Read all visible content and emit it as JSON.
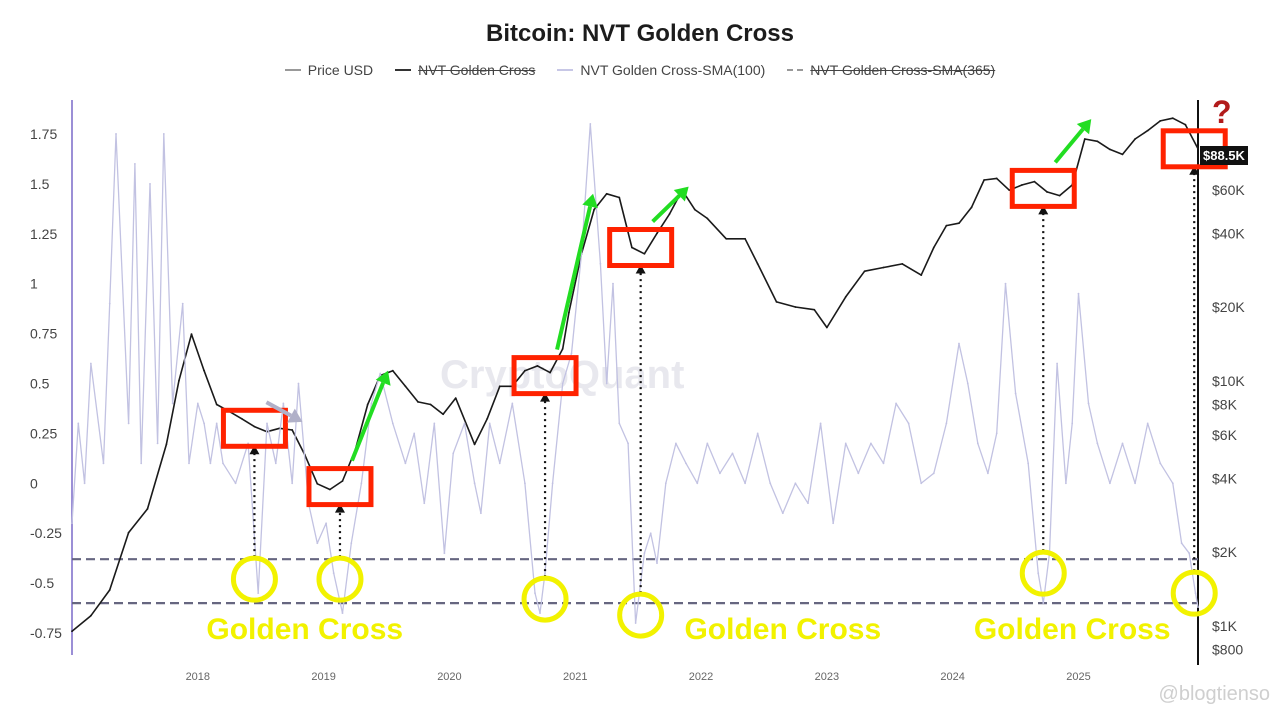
{
  "chart_data": {
    "type": "line",
    "title": "Bitcoin: NVT Golden Cross",
    "legend": [
      {
        "label": "Price USD",
        "color": "#999999",
        "style": "solid",
        "struck": false
      },
      {
        "label": "NVT Golden Cross",
        "color": "#333333",
        "style": "solid",
        "struck": true
      },
      {
        "label": "NVT Golden Cross-SMA(100)",
        "color": "#c7c7e6",
        "style": "solid",
        "struck": false
      },
      {
        "label": "NVT Golden Cross-SMA(365)",
        "color": "#999999",
        "style": "dashed",
        "struck": true
      }
    ],
    "legend_position": "top-center",
    "x_ticks": [
      "2018",
      "2019",
      "2020",
      "2021",
      "2022",
      "2023",
      "2024",
      "2025"
    ],
    "x_range": [
      2017.0,
      2025.95
    ],
    "y_left": {
      "ticks": [
        1.75,
        1.5,
        1.25,
        1,
        0.75,
        0.5,
        0.25,
        0,
        -0.25,
        -0.5,
        -0.75
      ],
      "tick_labels": [
        "1.75",
        "1.5",
        "1.25",
        "1",
        "0.75",
        "0.5",
        "0.25",
        "0",
        "-0.25",
        "-0.5",
        "-0.75"
      ],
      "range": [
        -0.86,
        1.92
      ]
    },
    "y_right": {
      "scale": "log",
      "ticks": [
        60000,
        40000,
        20000,
        10000,
        8000,
        6000,
        4000,
        2000,
        1000,
        800
      ],
      "tick_labels": [
        "$60K",
        "$40K",
        "$20K",
        "$10K",
        "$8K",
        "$6K",
        "$4K",
        "$2K",
        "$1K",
        "$800"
      ],
      "range": [
        760,
        140000
      ]
    },
    "current_price_label": "$88.5K",
    "question_mark": "?",
    "watermark": "CryptoQuant",
    "grid": false,
    "thresholds": [
      -0.38,
      -0.6
    ],
    "series": [
      {
        "name": "Price USD",
        "axis": "right",
        "color": "#1a1a1a",
        "x": [
          2017.0,
          2017.15,
          2017.3,
          2017.45,
          2017.6,
          2017.75,
          2017.85,
          2017.95,
          2018.05,
          2018.15,
          2018.25,
          2018.35,
          2018.45,
          2018.55,
          2018.65,
          2018.75,
          2018.85,
          2018.95,
          2019.05,
          2019.15,
          2019.25,
          2019.35,
          2019.45,
          2019.55,
          2019.65,
          2019.75,
          2019.85,
          2019.95,
          2020.05,
          2020.2,
          2020.3,
          2020.4,
          2020.5,
          2020.6,
          2020.7,
          2020.8,
          2020.9,
          2020.95,
          2021.05,
          2021.15,
          2021.25,
          2021.35,
          2021.45,
          2021.55,
          2021.65,
          2021.75,
          2021.85,
          2021.95,
          2022.05,
          2022.2,
          2022.35,
          2022.45,
          2022.6,
          2022.75,
          2022.9,
          2023.0,
          2023.15,
          2023.3,
          2023.45,
          2023.6,
          2023.75,
          2023.85,
          2023.95,
          2024.05,
          2024.15,
          2024.25,
          2024.35,
          2024.45,
          2024.55,
          2024.65,
          2024.75,
          2024.85,
          2024.95,
          2025.05,
          2025.15,
          2025.25,
          2025.35,
          2025.45,
          2025.55,
          2025.65,
          2025.75,
          2025.85,
          2025.95
        ],
        "y": [
          950,
          1100,
          1400,
          2400,
          3000,
          5500,
          10000,
          15500,
          11000,
          8000,
          7500,
          7000,
          6500,
          6200,
          6400,
          6300,
          5000,
          3800,
          3600,
          3900,
          5200,
          8000,
          10500,
          11000,
          9500,
          8200,
          8000,
          7300,
          8500,
          5500,
          7000,
          9500,
          9500,
          11000,
          11500,
          10800,
          13500,
          19000,
          33000,
          50000,
          58000,
          56000,
          35000,
          33000,
          40000,
          48000,
          60000,
          50000,
          46000,
          38000,
          38000,
          30000,
          21000,
          20000,
          19500,
          16500,
          22000,
          28000,
          29000,
          30000,
          27000,
          35000,
          43000,
          44000,
          51000,
          66000,
          67000,
          60000,
          63000,
          65000,
          59000,
          57000,
          63000,
          97000,
          95000,
          88000,
          84000,
          97000,
          105000,
          115000,
          118000,
          111000,
          88500
        ]
      },
      {
        "name": "NVT Golden Cross-SMA(100)",
        "axis": "left",
        "color": "#c2c2e2",
        "x": [
          2017.0,
          2017.05,
          2017.1,
          2017.15,
          2017.25,
          2017.3,
          2017.35,
          2017.45,
          2017.5,
          2017.55,
          2017.62,
          2017.68,
          2017.73,
          2017.8,
          2017.88,
          2017.93,
          2018.0,
          2018.05,
          2018.1,
          2018.15,
          2018.2,
          2018.3,
          2018.4,
          2018.48,
          2018.55,
          2018.62,
          2018.68,
          2018.75,
          2018.8,
          2018.88,
          2018.95,
          2019.02,
          2019.08,
          2019.15,
          2019.22,
          2019.3,
          2019.38,
          2019.45,
          2019.55,
          2019.65,
          2019.72,
          2019.8,
          2019.88,
          2019.96,
          2020.03,
          2020.12,
          2020.2,
          2020.25,
          2020.32,
          2020.4,
          2020.5,
          2020.6,
          2020.68,
          2020.72,
          2020.76,
          2020.82,
          2020.9,
          2020.97,
          2021.05,
          2021.12,
          2021.2,
          2021.25,
          2021.3,
          2021.35,
          2021.42,
          2021.48,
          2021.55,
          2021.6,
          2021.65,
          2021.72,
          2021.8,
          2021.88,
          2021.97,
          2022.05,
          2022.15,
          2022.25,
          2022.35,
          2022.45,
          2022.55,
          2022.65,
          2022.75,
          2022.85,
          2022.95,
          2023.05,
          2023.15,
          2023.25,
          2023.35,
          2023.45,
          2023.55,
          2023.65,
          2023.75,
          2023.85,
          2023.95,
          2024.05,
          2024.12,
          2024.2,
          2024.28,
          2024.35,
          2024.42,
          2024.5,
          2024.6,
          2024.68,
          2024.72,
          2024.77,
          2024.83,
          2024.9,
          2024.95,
          2025.0,
          2025.08,
          2025.15,
          2025.25,
          2025.35,
          2025.45,
          2025.55,
          2025.65,
          2025.75,
          2025.82,
          2025.88,
          2025.93,
          2025.95
        ],
        "y": [
          -0.2,
          0.3,
          0.0,
          0.6,
          0.1,
          0.9,
          1.75,
          0.3,
          1.6,
          0.1,
          1.5,
          0.2,
          1.75,
          0.4,
          0.9,
          0.1,
          0.4,
          0.3,
          0.1,
          0.3,
          0.1,
          0.0,
          0.2,
          -0.55,
          0.3,
          0.1,
          0.4,
          0.0,
          0.5,
          -0.1,
          -0.3,
          -0.2,
          -0.45,
          -0.65,
          -0.3,
          0.0,
          0.4,
          0.55,
          0.3,
          0.1,
          0.25,
          -0.1,
          0.3,
          -0.35,
          0.15,
          0.3,
          0.0,
          -0.15,
          0.3,
          0.1,
          0.4,
          0.0,
          -0.55,
          -0.65,
          -0.45,
          0.0,
          0.5,
          0.65,
          1.15,
          1.8,
          1.1,
          0.5,
          1.0,
          0.3,
          0.2,
          -0.7,
          -0.35,
          -0.25,
          -0.4,
          0.0,
          0.2,
          0.1,
          0.0,
          0.2,
          0.05,
          0.15,
          0.0,
          0.25,
          0.0,
          -0.15,
          0.0,
          -0.1,
          0.3,
          -0.2,
          0.2,
          0.05,
          0.2,
          0.1,
          0.4,
          0.3,
          0.0,
          0.05,
          0.3,
          0.7,
          0.5,
          0.2,
          0.05,
          0.25,
          1.0,
          0.45,
          0.1,
          -0.45,
          -0.6,
          -0.35,
          0.6,
          0.0,
          0.3,
          0.95,
          0.4,
          0.2,
          0.0,
          0.2,
          0.0,
          0.3,
          0.1,
          0.0,
          -0.3,
          -0.35,
          -0.55,
          -0.62
        ]
      }
    ],
    "annotations": [
      {
        "type": "golden_cross_label",
        "text": "Golden Cross",
        "x": 2018.85,
        "y": -0.73
      },
      {
        "type": "golden_cross_label",
        "text": "Golden Cross",
        "x": 2022.65,
        "y": -0.73
      },
      {
        "type": "golden_cross_label",
        "text": "Golden Cross",
        "x": 2024.95,
        "y": -0.73
      }
    ],
    "cross_events": [
      {
        "x": 2018.45,
        "sma_value": -0.48,
        "price_box": 6400,
        "arrow_to": 6800,
        "arrow_color": "#b0b0c8"
      },
      {
        "x": 2019.13,
        "sma_value": -0.48,
        "price_box": 3700,
        "arrow_to": 11000,
        "arrow_color": "#22dd22"
      },
      {
        "x": 2020.76,
        "sma_value": -0.58,
        "price_box": 10500,
        "arrow_to": 58000,
        "arrow_color": "#22dd22"
      },
      {
        "x": 2021.52,
        "sma_value": -0.66,
        "price_box": 35000,
        "arrow_to": 62000,
        "arrow_color": "#22dd22"
      },
      {
        "x": 2024.72,
        "sma_value": -0.45,
        "price_box": 61000,
        "arrow_to": 117000,
        "arrow_color": "#22dd22"
      },
      {
        "x": 2025.92,
        "sma_value": -0.55,
        "price_box": 88500,
        "arrow_to": null,
        "arrow_color": null
      }
    ]
  },
  "attribution": "@blogtienso"
}
